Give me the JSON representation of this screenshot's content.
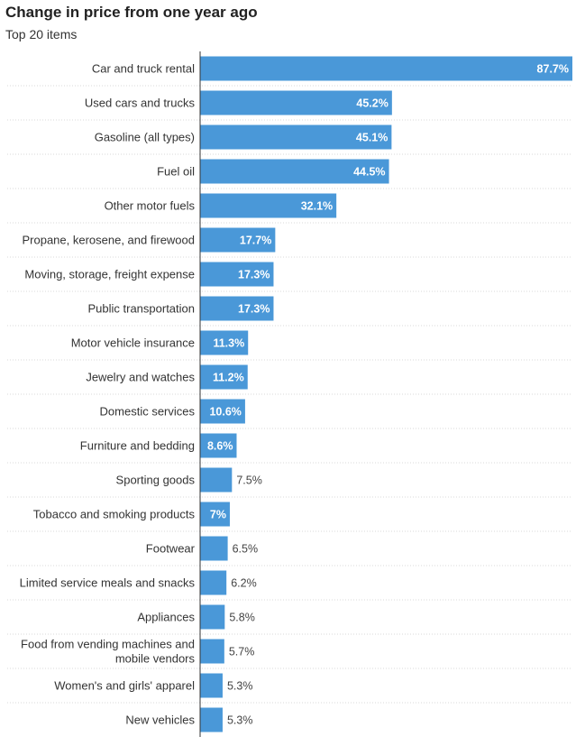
{
  "title": "Change in price from one year ago",
  "subtitle": "Top 20 items",
  "colors": {
    "bar": "#4a98d8",
    "label_inside": "#ffffff",
    "label_outside": "#444444",
    "gridline": "#d8d8d8",
    "axis": "#333333"
  },
  "chart_data": {
    "type": "bar",
    "orientation": "horizontal",
    "title": "Change in price from one year ago",
    "subtitle": "Top 20 items",
    "xlim": [
      0,
      87.7
    ],
    "grid": false,
    "legend": "none",
    "categories": [
      "Car and truck rental",
      "Used cars and trucks",
      "Gasoline (all types)",
      "Fuel oil",
      "Other motor fuels",
      "Propane, kerosene, and firewood",
      "Moving, storage, freight expense",
      "Public transportation",
      "Motor vehicle insurance",
      "Jewelry and watches",
      "Domestic services",
      "Furniture and bedding",
      "Sporting goods",
      "Tobacco and smoking products",
      "Footwear",
      "Limited service meals and snacks",
      "Appliances",
      "Food from vending machines and mobile vendors",
      "Women's and girls' apparel",
      "New vehicles"
    ],
    "category_lines": [
      [
        "Car and truck rental"
      ],
      [
        "Used cars and trucks"
      ],
      [
        "Gasoline (all types)"
      ],
      [
        "Fuel oil"
      ],
      [
        "Other motor fuels"
      ],
      [
        "Propane, kerosene, and firewood"
      ],
      [
        "Moving, storage, freight expense"
      ],
      [
        "Public transportation"
      ],
      [
        "Motor vehicle insurance"
      ],
      [
        "Jewelry and watches"
      ],
      [
        "Domestic services"
      ],
      [
        "Furniture and bedding"
      ],
      [
        "Sporting goods"
      ],
      [
        "Tobacco and smoking products"
      ],
      [
        "Footwear"
      ],
      [
        "Limited service meals and snacks"
      ],
      [
        "Appliances"
      ],
      [
        "Food from vending machines and",
        "mobile vendors"
      ],
      [
        "Women's and girls' apparel"
      ],
      [
        "New vehicles"
      ]
    ],
    "values": [
      87.7,
      45.2,
      45.1,
      44.5,
      32.1,
      17.7,
      17.3,
      17.3,
      11.3,
      11.2,
      10.6,
      8.6,
      7.5,
      7,
      6.5,
      6.2,
      5.8,
      5.7,
      5.3,
      5.3
    ],
    "value_labels": [
      "87.7%",
      "45.2%",
      "45.1%",
      "44.5%",
      "32.1%",
      "17.7%",
      "17.3%",
      "17.3%",
      "11.3%",
      "11.2%",
      "10.6%",
      "8.6%",
      "7.5%",
      "7%",
      "6.5%",
      "6.2%",
      "5.8%",
      "5.7%",
      "5.3%",
      "5.3%"
    ],
    "label_inside": [
      true,
      true,
      true,
      true,
      true,
      true,
      true,
      true,
      true,
      true,
      true,
      true,
      false,
      true,
      false,
      false,
      false,
      false,
      false,
      false
    ]
  }
}
